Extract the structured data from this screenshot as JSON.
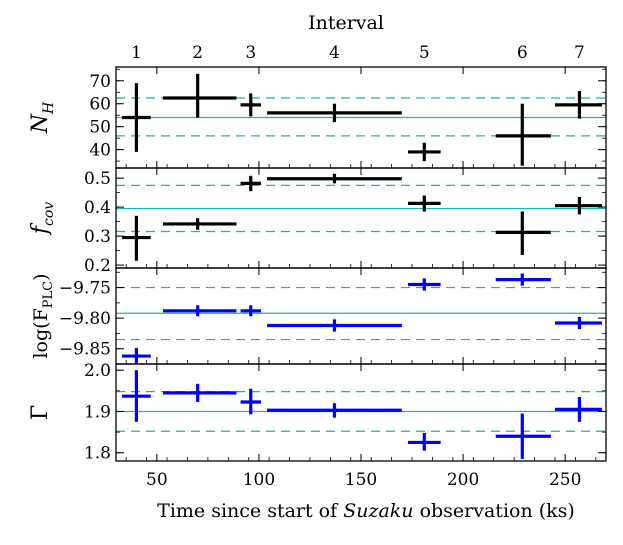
{
  "chart_data": {
    "type": "scatter",
    "title": "Interval",
    "xlabel_pre": "Time since start of ",
    "xlabel_em": "Suzaku",
    "xlabel_post": " observation (ks)",
    "xlim": [
      30,
      270
    ],
    "x_ticks": [
      "50",
      "100",
      "150",
      "200",
      "250"
    ],
    "intervals": [
      {
        "label": "1",
        "x": 40
      },
      {
        "label": "2",
        "x": 70
      },
      {
        "label": "3",
        "x": 96
      },
      {
        "label": "4",
        "x": 137
      },
      {
        "label": "5",
        "x": 181
      },
      {
        "label": "6",
        "x": 229
      },
      {
        "label": "7",
        "x": 257
      }
    ],
    "panels": [
      {
        "key": "nh",
        "ylabel_main": "N",
        "ylabel_sub": "H",
        "ylim": [
          32,
          76
        ],
        "y_ticks": [
          {
            "v": 40,
            "t": "40"
          },
          {
            "v": 50,
            "t": "50"
          },
          {
            "v": 60,
            "t": "60"
          },
          {
            "v": 70,
            "t": "70"
          }
        ],
        "color": "#000000",
        "mean": 54,
        "band": [
          46,
          62.5
        ],
        "points": [
          {
            "x": 40,
            "xlo": 33,
            "xhi": 47,
            "y": 54,
            "ylo": 39,
            "yhi": 69
          },
          {
            "x": 70,
            "xlo": 53,
            "xhi": 89,
            "y": 62.5,
            "ylo": 54,
            "yhi": 73
          },
          {
            "x": 96,
            "xlo": 91,
            "xhi": 101,
            "y": 59.5,
            "ylo": 54.5,
            "yhi": 64.5
          },
          {
            "x": 137,
            "xlo": 104,
            "xhi": 170,
            "y": 56,
            "ylo": 52,
            "yhi": 60
          },
          {
            "x": 181,
            "xlo": 173,
            "xhi": 189,
            "y": 39,
            "ylo": 35,
            "yhi": 43
          },
          {
            "x": 229,
            "xlo": 216,
            "xhi": 243,
            "y": 46,
            "ylo": 33,
            "yhi": 60
          },
          {
            "x": 257,
            "xlo": 245,
            "xhi": 268,
            "y": 59.5,
            "ylo": 53.5,
            "yhi": 65.5
          }
        ]
      },
      {
        "key": "fcov",
        "ylabel_main": "f",
        "ylabel_sub": "cov",
        "ylim": [
          0.19,
          0.535
        ],
        "y_ticks": [
          {
            "v": 0.2,
            "t": "0.2"
          },
          {
            "v": 0.3,
            "t": "0.3"
          },
          {
            "v": 0.4,
            "t": "0.4"
          },
          {
            "v": 0.5,
            "t": "0.5"
          }
        ],
        "color": "#000000",
        "mean": 0.395,
        "band": [
          0.316,
          0.475
        ],
        "points": [
          {
            "x": 40,
            "xlo": 33,
            "xhi": 47,
            "y": 0.295,
            "ylo": 0.215,
            "yhi": 0.37
          },
          {
            "x": 70,
            "xlo": 53,
            "xhi": 89,
            "y": 0.342,
            "ylo": 0.322,
            "yhi": 0.362
          },
          {
            "x": 96,
            "xlo": 91,
            "xhi": 101,
            "y": 0.482,
            "ylo": 0.455,
            "yhi": 0.508
          },
          {
            "x": 137,
            "xlo": 104,
            "xhi": 170,
            "y": 0.498,
            "ylo": 0.482,
            "yhi": 0.515
          },
          {
            "x": 181,
            "xlo": 173,
            "xhi": 189,
            "y": 0.413,
            "ylo": 0.385,
            "yhi": 0.44
          },
          {
            "x": 229,
            "xlo": 216,
            "xhi": 243,
            "y": 0.313,
            "ylo": 0.235,
            "yhi": 0.385
          },
          {
            "x": 257,
            "xlo": 245,
            "xhi": 268,
            "y": 0.405,
            "ylo": 0.375,
            "yhi": 0.435
          }
        ]
      },
      {
        "key": "logf",
        "ylabel_main": "log(F",
        "ylabel_sub": "PLC",
        "ylabel_tail": ")",
        "ylim": [
          -9.875,
          -9.718
        ],
        "y_ticks": [
          {
            "v": -9.85,
            "t": "−9.85"
          },
          {
            "v": -9.8,
            "t": "−9.80"
          },
          {
            "v": -9.75,
            "t": "−9.75"
          }
        ],
        "color": "#0000ff",
        "mean": -9.792,
        "band": [
          -9.835,
          -9.75
        ],
        "points": [
          {
            "x": 40,
            "xlo": 33,
            "xhi": 47,
            "y": -9.862,
            "ylo": -9.874,
            "yhi": -9.849
          },
          {
            "x": 70,
            "xlo": 53,
            "xhi": 89,
            "y": -9.788,
            "ylo": -9.797,
            "yhi": -9.779
          },
          {
            "x": 96,
            "xlo": 91,
            "xhi": 101,
            "y": -9.788,
            "ylo": -9.797,
            "yhi": -9.779
          },
          {
            "x": 137,
            "xlo": 104,
            "xhi": 170,
            "y": -9.812,
            "ylo": -9.822,
            "yhi": -9.802
          },
          {
            "x": 181,
            "xlo": 173,
            "xhi": 189,
            "y": -9.745,
            "ylo": -9.755,
            "yhi": -9.735
          },
          {
            "x": 229,
            "xlo": 216,
            "xhi": 243,
            "y": -9.737,
            "ylo": -9.747,
            "yhi": -9.727
          },
          {
            "x": 257,
            "xlo": 245,
            "xhi": 268,
            "y": -9.808,
            "ylo": -9.818,
            "yhi": -9.798
          }
        ]
      },
      {
        "key": "gamma",
        "ylabel_main": "Γ",
        "ylim": [
          1.78,
          2.015
        ],
        "y_ticks": [
          {
            "v": 1.8,
            "t": "1.8"
          },
          {
            "v": 1.9,
            "t": "1.9"
          },
          {
            "v": 2.0,
            "t": "2.0"
          }
        ],
        "color": "#0000ff",
        "mean": 1.9,
        "band": [
          1.852,
          1.948
        ],
        "points": [
          {
            "x": 40,
            "xlo": 33,
            "xhi": 47,
            "y": 1.937,
            "ylo": 1.875,
            "yhi": 2.0
          },
          {
            "x": 70,
            "xlo": 53,
            "xhi": 89,
            "y": 1.945,
            "ylo": 1.923,
            "yhi": 1.967
          },
          {
            "x": 96,
            "xlo": 91,
            "xhi": 101,
            "y": 1.923,
            "ylo": 1.893,
            "yhi": 1.955
          },
          {
            "x": 137,
            "xlo": 104,
            "xhi": 170,
            "y": 1.903,
            "ylo": 1.885,
            "yhi": 1.92
          },
          {
            "x": 181,
            "xlo": 173,
            "xhi": 189,
            "y": 1.825,
            "ylo": 1.805,
            "yhi": 1.848
          },
          {
            "x": 229,
            "xlo": 216,
            "xhi": 243,
            "y": 1.84,
            "ylo": 1.785,
            "yhi": 1.895
          },
          {
            "x": 257,
            "xlo": 245,
            "xhi": 268,
            "y": 1.905,
            "ylo": 1.875,
            "yhi": 1.935
          }
        ]
      }
    ]
  }
}
